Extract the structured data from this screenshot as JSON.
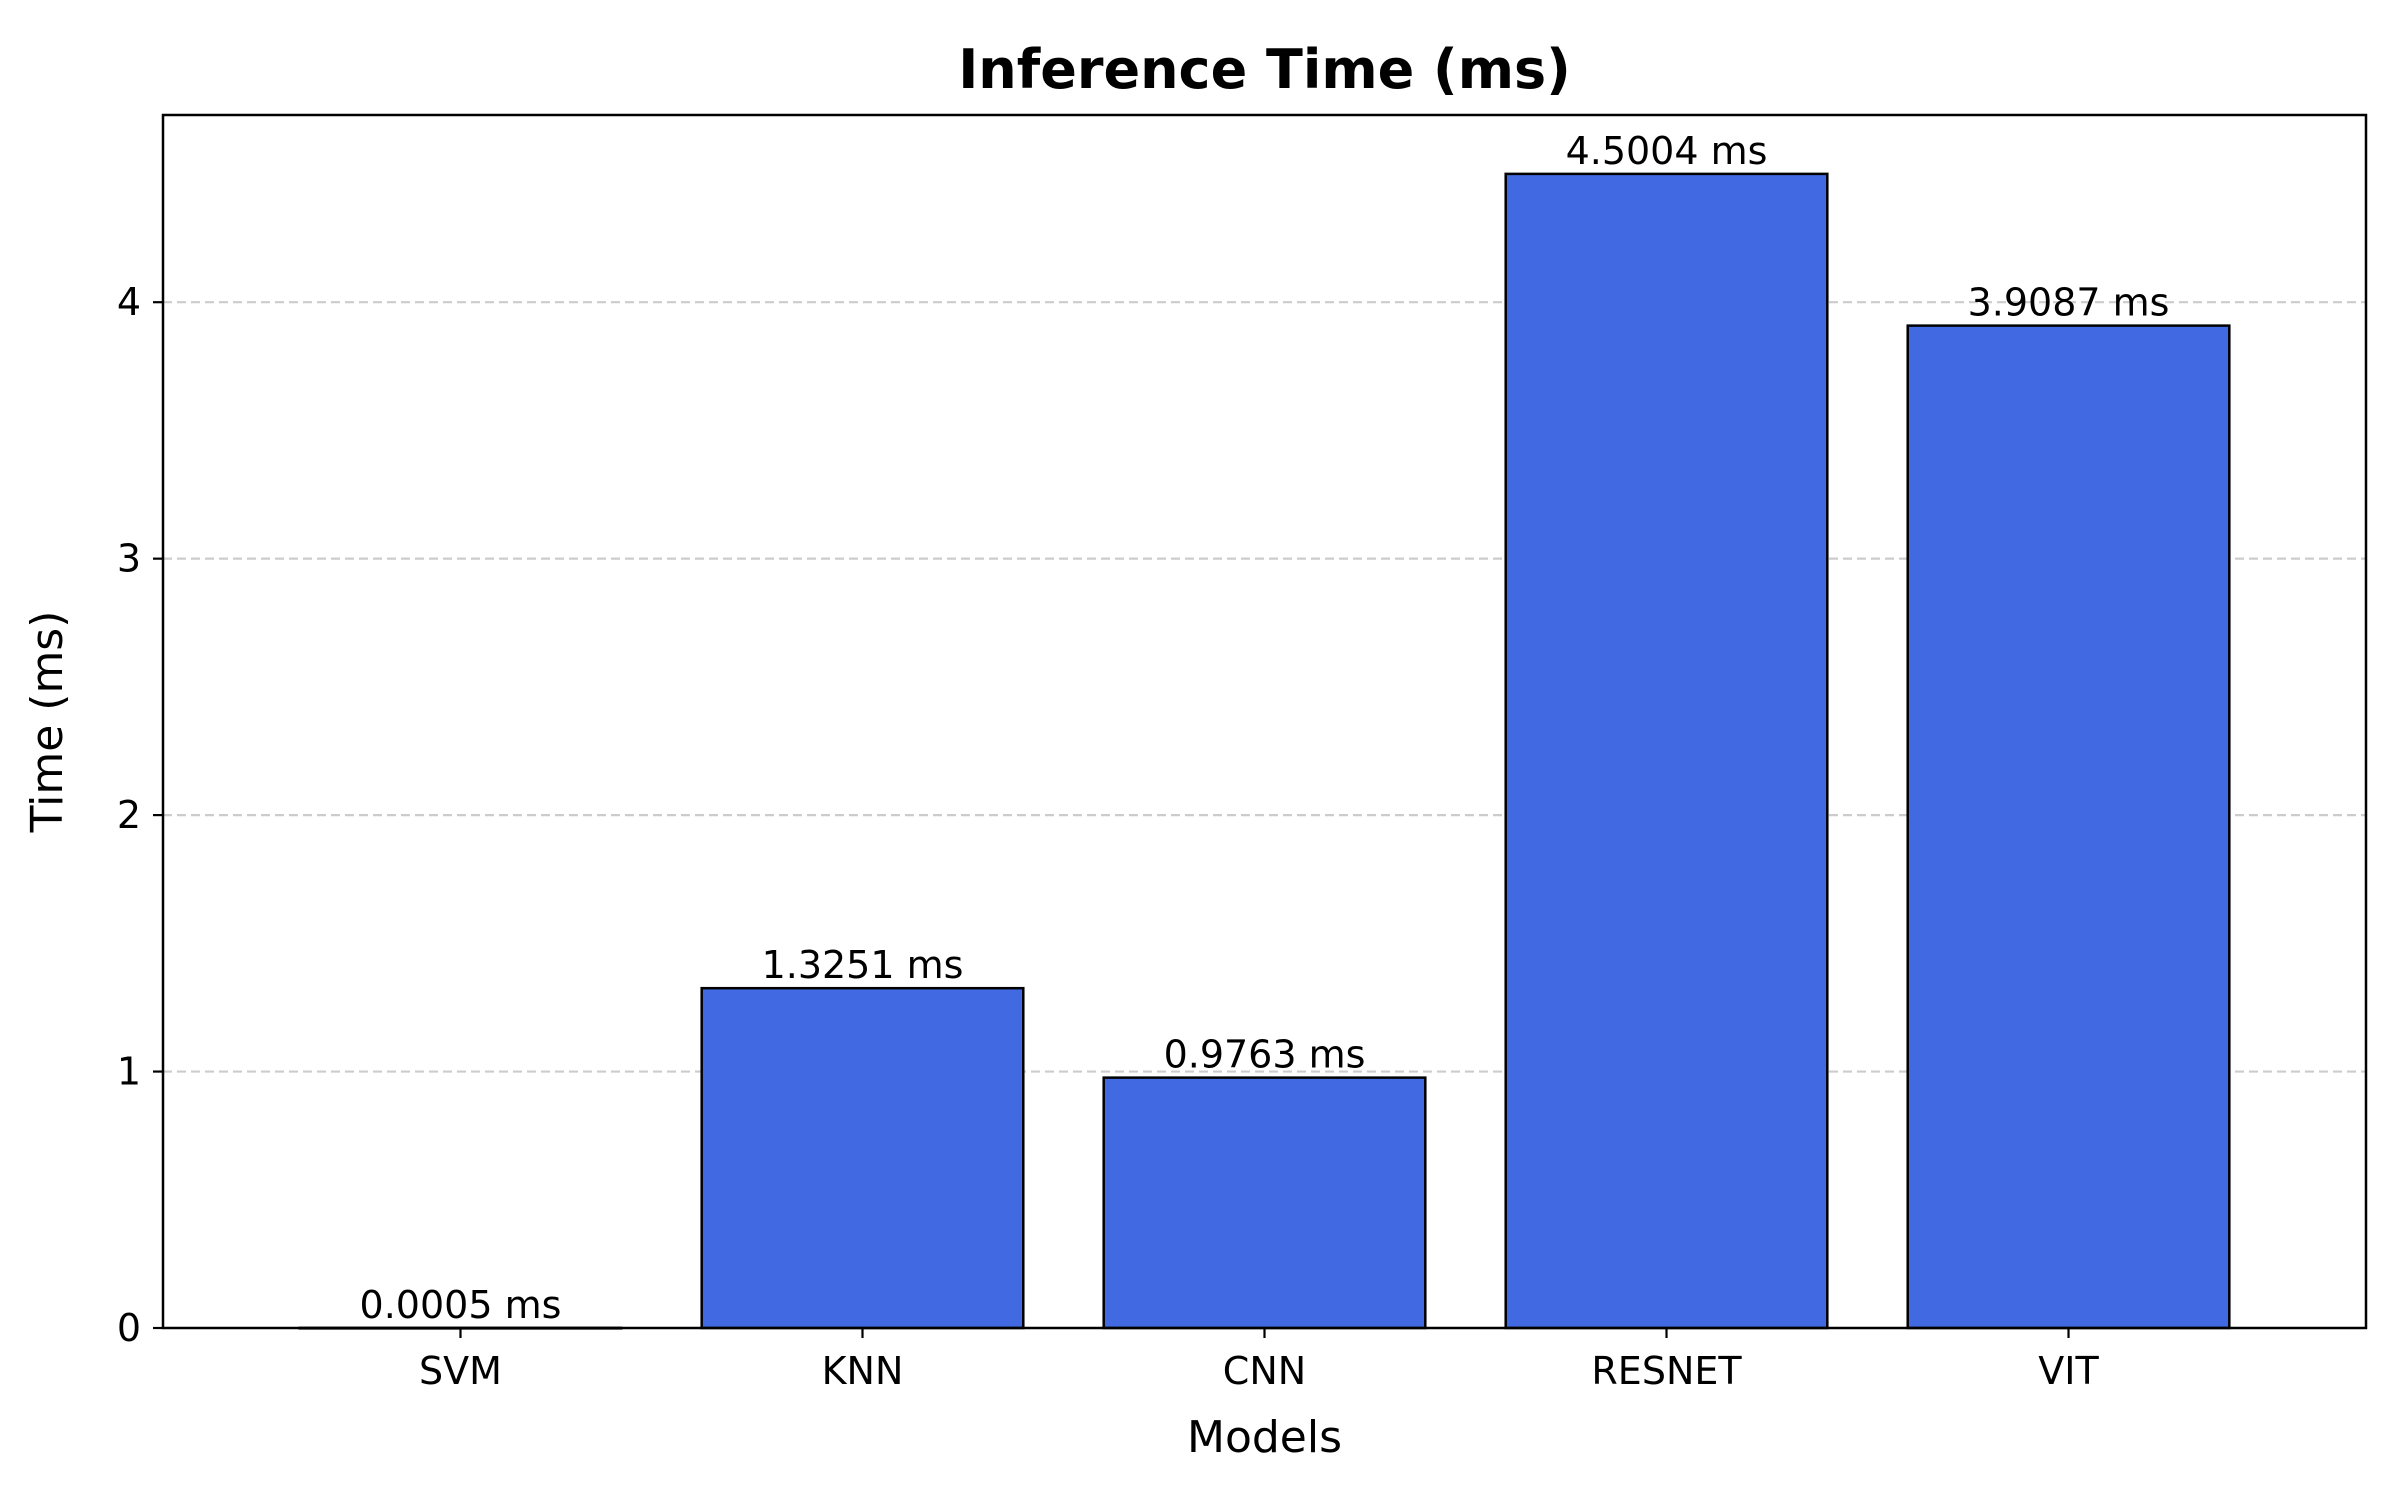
{
  "chart_data": {
    "type": "bar",
    "title": "Inference Time (ms)",
    "xlabel": "Models",
    "ylabel": "Time (ms)",
    "categories": [
      "SVM",
      "KNN",
      "CNN",
      "RESNET",
      "VIT"
    ],
    "values": [
      0.0005,
      1.3251,
      0.9763,
      4.5004,
      3.9087
    ],
    "data_labels": [
      "0.0005 ms",
      "1.3251 ms",
      "0.9763 ms",
      "4.5004 ms",
      "3.9087 ms"
    ],
    "ylim": [
      0,
      4.73
    ],
    "yticks": [
      0,
      1,
      2,
      3,
      4
    ],
    "ytick_labels": [
      "0",
      "1",
      "2",
      "3",
      "4"
    ],
    "grid": {
      "axis": "y",
      "style": "dashed"
    },
    "colors": {
      "bar_fill": "#4169E1",
      "bar_edge": "#000000",
      "grid": "#cccccc"
    }
  }
}
